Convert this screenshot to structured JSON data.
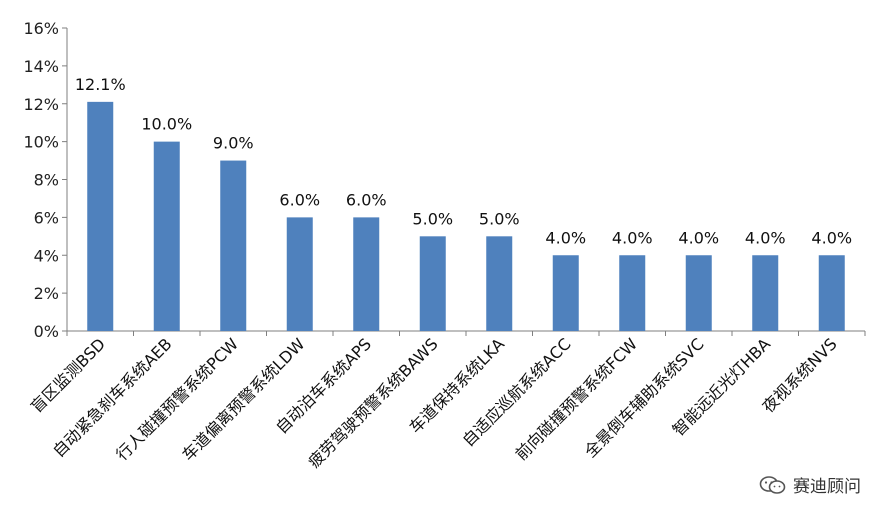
{
  "chart_data": {
    "type": "bar",
    "categories": [
      "盲区监测BSD",
      "自动紧急刹车系统AEB",
      "行人碰撞预警系统PCW",
      "车道偏离预警系统LDW",
      "自动泊车系统APS",
      "疲劳驾驶预警系统BAWS",
      "车道保持系统LKA",
      "自适应巡航系统ACC",
      "前向碰撞预警系统FCW",
      "全景倒车辅助系统SVC",
      "智能远近光灯HBA",
      "夜视系统NVS"
    ],
    "values": [
      12.1,
      10.0,
      9.0,
      6.0,
      6.0,
      5.0,
      5.0,
      4.0,
      4.0,
      4.0,
      4.0,
      4.0
    ],
    "data_labels": [
      "12.1%",
      "10.0%",
      "9.0%",
      "6.0%",
      "6.0%",
      "5.0%",
      "5.0%",
      "4.0%",
      "4.0%",
      "4.0%",
      "4.0%",
      "4.0%"
    ],
    "yticks": [
      "0%",
      "2%",
      "4%",
      "6%",
      "8%",
      "10%",
      "12%",
      "14%",
      "16%"
    ],
    "ylim": [
      0,
      16
    ],
    "bar_color": "#4f81bd",
    "grid": false,
    "title": "",
    "xlabel": "",
    "ylabel": ""
  },
  "watermark": {
    "text": "赛迪顾问",
    "icon": "wechat-icon"
  }
}
